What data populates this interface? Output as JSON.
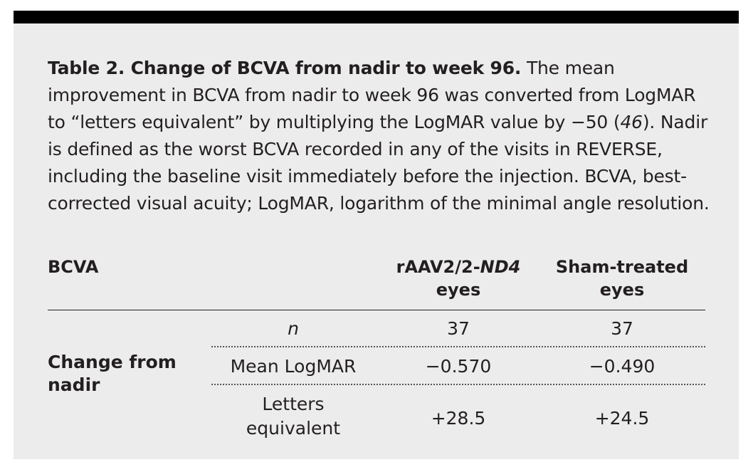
{
  "caption": {
    "title": "Table 2. Change of BCVA from nadir to week 96.",
    "text_1": " The mean improvement in BCVA from nadir to week 96 was converted from LogMAR to “letters equivalent” by multiplying the LogMAR value by −50 (",
    "ref": "46",
    "text_2": "). Nadir is defined as the worst BCVA recorded in any of the visits in REVERSE, including the baseline visit immediately before the injection. BCVA, best-corrected visual acuity; LogMAR, logarithm of the minimal angle resolution."
  },
  "table": {
    "header": {
      "col0": "BCVA",
      "col2_prefix": "rAAV2/2-",
      "col2_italic": "ND4",
      "col2_suffix": "eyes",
      "col3_line1": "Sham-treated",
      "col3_line2": "eyes"
    },
    "group_label": "Change from nadir",
    "rows": [
      {
        "label": "n",
        "treated": "37",
        "sham": "37"
      },
      {
        "label": "Mean LogMAR",
        "treated": "−0.570",
        "sham": "−0.490"
      },
      {
        "label": "Letters equivalent",
        "treated": "+28.5",
        "sham": "+24.5"
      }
    ]
  }
}
